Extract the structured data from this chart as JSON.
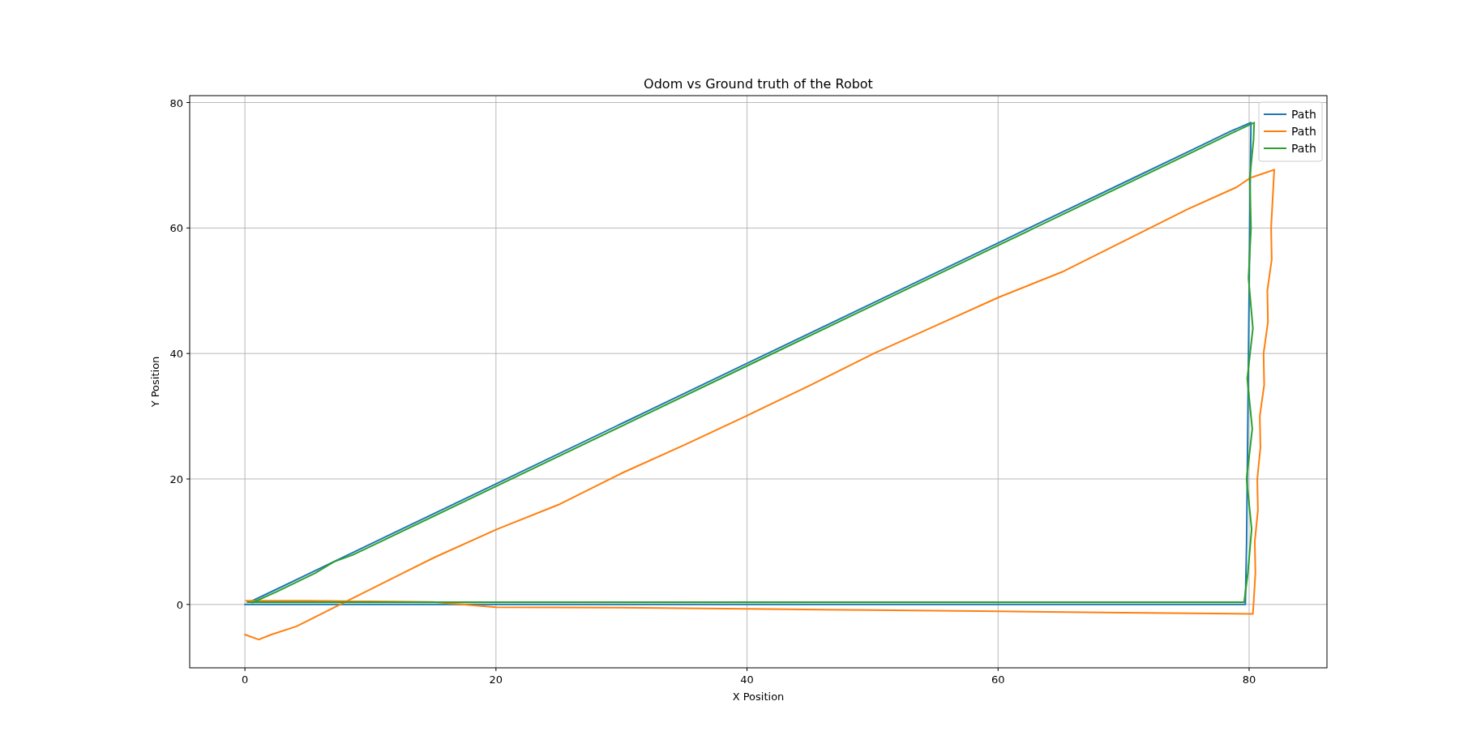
{
  "chart_data": {
    "type": "line",
    "title": "Odom vs Ground truth of the Robot",
    "xlabel": "X Position",
    "ylabel": "Y Position",
    "xlim": [
      -4.4,
      86.2
    ],
    "ylim": [
      -10.1,
      81.1
    ],
    "xticks": [
      0,
      20,
      40,
      60,
      80
    ],
    "yticks": [
      0,
      20,
      40,
      60,
      80
    ],
    "grid": true,
    "legend": "top right",
    "series": [
      {
        "name": "Path",
        "color": "#1f77b4",
        "x": [
          0,
          10,
          20,
          30,
          40,
          50,
          60,
          70,
          79.7,
          79.75,
          79.8,
          79.85,
          79.9,
          79.95,
          80,
          80.05,
          80.1,
          80.15,
          78.5,
          75.5,
          70.5,
          60.5,
          50.5,
          40.5,
          30.5,
          20.5,
          10.5,
          5.5,
          2.5,
          0.5
        ],
        "values": [
          0,
          0,
          0,
          0,
          0,
          0,
          0,
          0,
          0,
          5,
          10,
          20,
          30,
          40,
          50,
          60,
          70,
          76.8,
          75.4,
          72.5,
          67.7,
          58.1,
          48.5,
          38.9,
          29.3,
          19.7,
          10.1,
          5.3,
          2.4,
          0.5
        ]
      },
      {
        "name": "Path",
        "color": "#ff7f0e",
        "x": [
          0.1,
          2,
          5,
          10,
          15,
          20,
          30,
          40,
          50,
          60,
          70,
          80.3,
          80.35,
          80.5,
          80.45,
          80.7,
          80.65,
          80.9,
          80.85,
          81.2,
          81.15,
          81.5,
          81.45,
          81.8,
          81.75,
          82,
          81,
          80.1,
          79,
          75.1,
          70.1,
          65.1,
          60.1,
          55.1,
          50.1,
          45.1,
          40.1,
          35.1,
          30.1,
          25.1,
          20.1,
          15.1,
          10.1,
          8.1,
          6.1,
          4.1,
          2.1,
          1.1,
          0
        ],
        "values": [
          0.6,
          0.6,
          0.6,
          0.5,
          0.4,
          -0.45,
          -0.5,
          -0.7,
          -0.9,
          -1.1,
          -1.3,
          -1.5,
          0,
          5,
          10,
          15,
          20,
          25,
          30,
          35,
          40,
          45,
          50,
          55,
          60,
          69.3,
          68.6,
          68,
          66.5,
          63,
          58,
          53,
          49,
          44.5,
          40,
          35,
          30.2,
          25.5,
          21,
          16,
          12,
          7.5,
          2.5,
          0.5,
          -1.5,
          -3.5,
          -4.8,
          -5.6,
          -4.8
        ]
      },
      {
        "name": "Path",
        "color": "#2ca02c",
        "x": [
          0.2,
          10.2,
          20.2,
          30.2,
          40.2,
          50.2,
          60.2,
          70.2,
          79.6,
          79.9,
          80.2,
          79.8,
          80.25,
          79.85,
          80.3,
          79.95,
          80.15,
          80.05,
          80.35,
          80.4,
          78.6,
          75.6,
          70.6,
          60.6,
          50.6,
          40.6,
          30.6,
          20.6,
          10.6,
          8.6,
          7.1,
          5.6,
          2.6,
          0.6
        ],
        "values": [
          0.35,
          0.35,
          0.35,
          0.35,
          0.35,
          0.35,
          0.35,
          0.35,
          0.35,
          5,
          12,
          20,
          28,
          36,
          44,
          52,
          60,
          68,
          74,
          76.8,
          75.1,
          72.2,
          67.4,
          57.8,
          48.2,
          38.6,
          29,
          19.4,
          9.8,
          7.9,
          6.8,
          5,
          2.1,
          0.3
        ]
      }
    ]
  }
}
